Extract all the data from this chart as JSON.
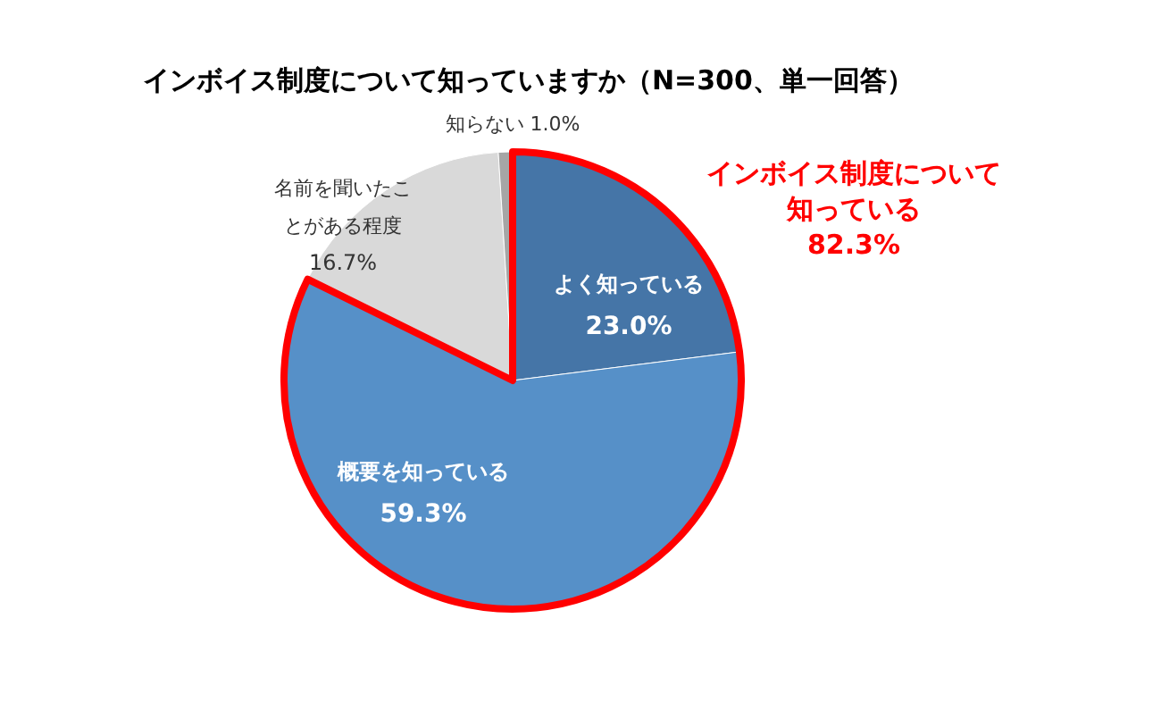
{
  "chart_data": {
    "type": "pie",
    "title": "インボイス制度について知っていますか（N=300、単一回答）",
    "categories": [
      "よく知っている",
      "概要を知っている",
      "名前を聞いたことがある程度",
      "知らない"
    ],
    "values": [
      23.0,
      59.3,
      16.7,
      1.0
    ],
    "value_labels": [
      "23.0%",
      "59.3%",
      "16.7%",
      "1.0%"
    ],
    "colors": [
      "#4575a7",
      "#5690c8",
      "#d9d9d9",
      "#a6a6a6"
    ],
    "annotations": [
      "インボイス制度について",
      "知っている",
      "82.3%"
    ]
  }
}
